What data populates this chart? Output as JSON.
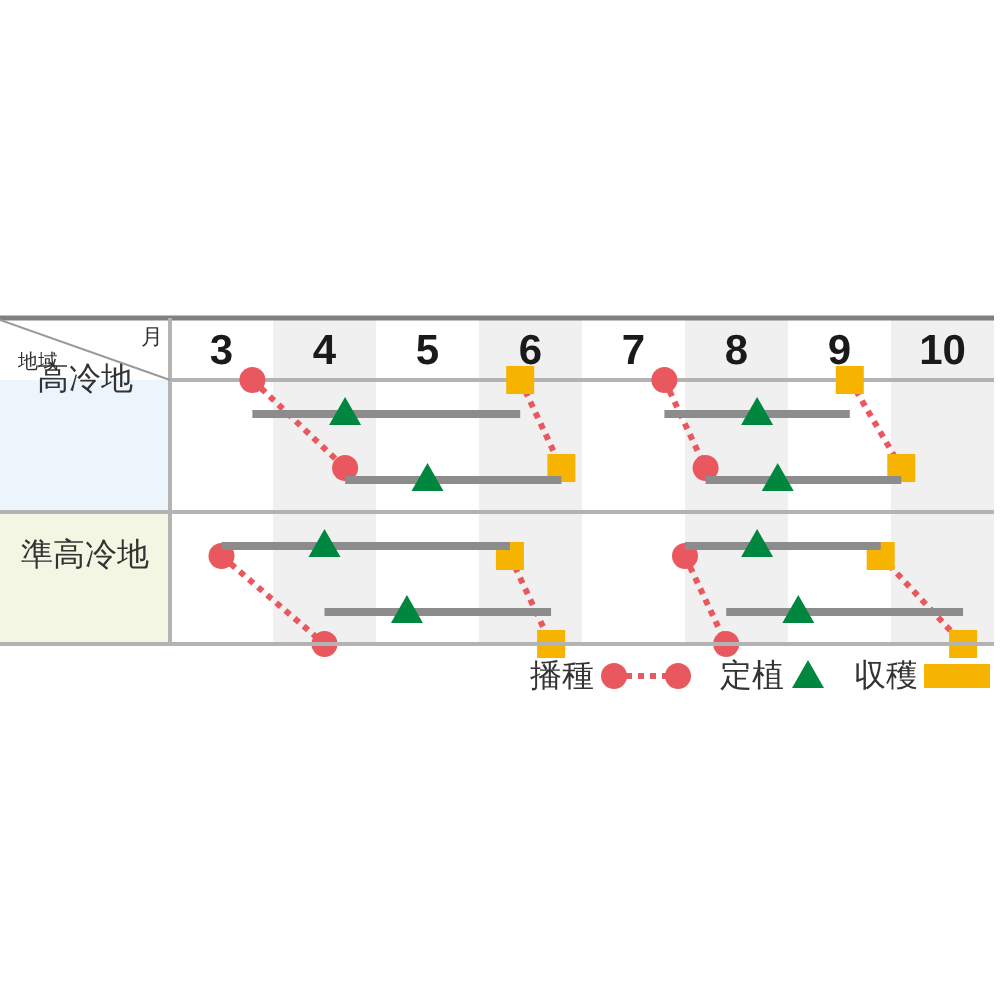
{
  "chart_data": {
    "type": "scatter",
    "orientation": "horizontal",
    "xlabel": "月",
    "ylabel": "地域",
    "categories": [
      "高冷地",
      null,
      "準高冷地",
      null
    ],
    "xlim": [
      3,
      11
    ],
    "xticks": [
      {
        "value": 3.5,
        "label": "3"
      },
      {
        "value": 4.5,
        "label": "4"
      },
      {
        "value": 5.5,
        "label": "5"
      },
      {
        "value": 6.5,
        "label": "6"
      },
      {
        "value": 7.5,
        "label": "7"
      },
      {
        "value": 8.5,
        "label": "8"
      },
      {
        "value": 9.5,
        "label": "9"
      },
      {
        "value": 10.5,
        "label": "10"
      }
    ],
    "bands": [
      {
        "axis": "x",
        "from": 4,
        "to": 5,
        "color": "#f0f0f0"
      },
      {
        "axis": "x",
        "from": 6,
        "to": 7,
        "color": "#f0f0f0"
      },
      {
        "axis": "x",
        "from": 8,
        "to": 9,
        "color": "#f0f0f0"
      },
      {
        "axis": "x",
        "from": 10,
        "to": 11,
        "color": "#f0f0f0"
      }
    ],
    "legend": "bottom right",
    "series": [
      {
        "type": "bar",
        "color": "#8c8c8c",
        "base": [
          3.8,
          4.7,
          3.5,
          4.5
        ],
        "values": [
          2.6,
          2.1,
          2.8,
          2.2
        ]
      },
      {
        "type": "bar",
        "color": "#8c8c8c",
        "base": [
          7.8,
          8.2,
          8.0,
          8.4
        ],
        "values": [
          1.8,
          1.9,
          1.9,
          2.3
        ]
      },
      {
        "type": "line",
        "name": "播種",
        "color": "#e9585e",
        "marker": "circle",
        "line_style": "dotted",
        "values": [
          3.8,
          4.7,
          null,
          null
        ]
      },
      {
        "type": "line",
        "color": "#e9585e",
        "marker": "circle",
        "line_style": "dotted",
        "values": [
          null,
          null,
          3.5,
          4.5
        ]
      },
      {
        "type": "line",
        "color": "#e9585e",
        "marker": "circle",
        "line_style": "dotted",
        "values": [
          7.8,
          8.2,
          null,
          null
        ]
      },
      {
        "type": "line",
        "color": "#e9585e",
        "marker": "circle",
        "line_style": "dotted",
        "values": [
          null,
          null,
          8.0,
          8.4
        ]
      },
      {
        "type": "line",
        "color": "#e9585e",
        "marker": "none",
        "line_style": "dotted",
        "values": [
          6.4,
          6.8,
          null,
          null
        ]
      },
      {
        "type": "line",
        "color": "#e9585e",
        "marker": "none",
        "line_style": "dotted",
        "values": [
          null,
          null,
          6.3,
          6.7
        ]
      },
      {
        "type": "line",
        "color": "#e9585e",
        "marker": "none",
        "line_style": "dotted",
        "values": [
          9.6,
          10.1,
          null,
          null
        ]
      },
      {
        "type": "line",
        "color": "#e9585e",
        "marker": "none",
        "line_style": "dotted",
        "values": [
          null,
          null,
          9.9,
          10.7
        ]
      },
      {
        "name": "定植",
        "color": "#00873f",
        "marker": "triangle",
        "values": [
          4.7,
          5.5,
          4.5,
          5.3
        ]
      },
      {
        "color": "#00873f",
        "marker": "triangle",
        "values": [
          8.7,
          8.9,
          8.7,
          9.1
        ]
      },
      {
        "name": "収穫",
        "color": "#f6b400",
        "marker": "square",
        "values": [
          6.4,
          6.8,
          6.3,
          6.7
        ]
      },
      {
        "color": "#f6b400",
        "marker": "square",
        "values": [
          9.6,
          10.1,
          9.9,
          10.7
        ]
      }
    ]
  }
}
